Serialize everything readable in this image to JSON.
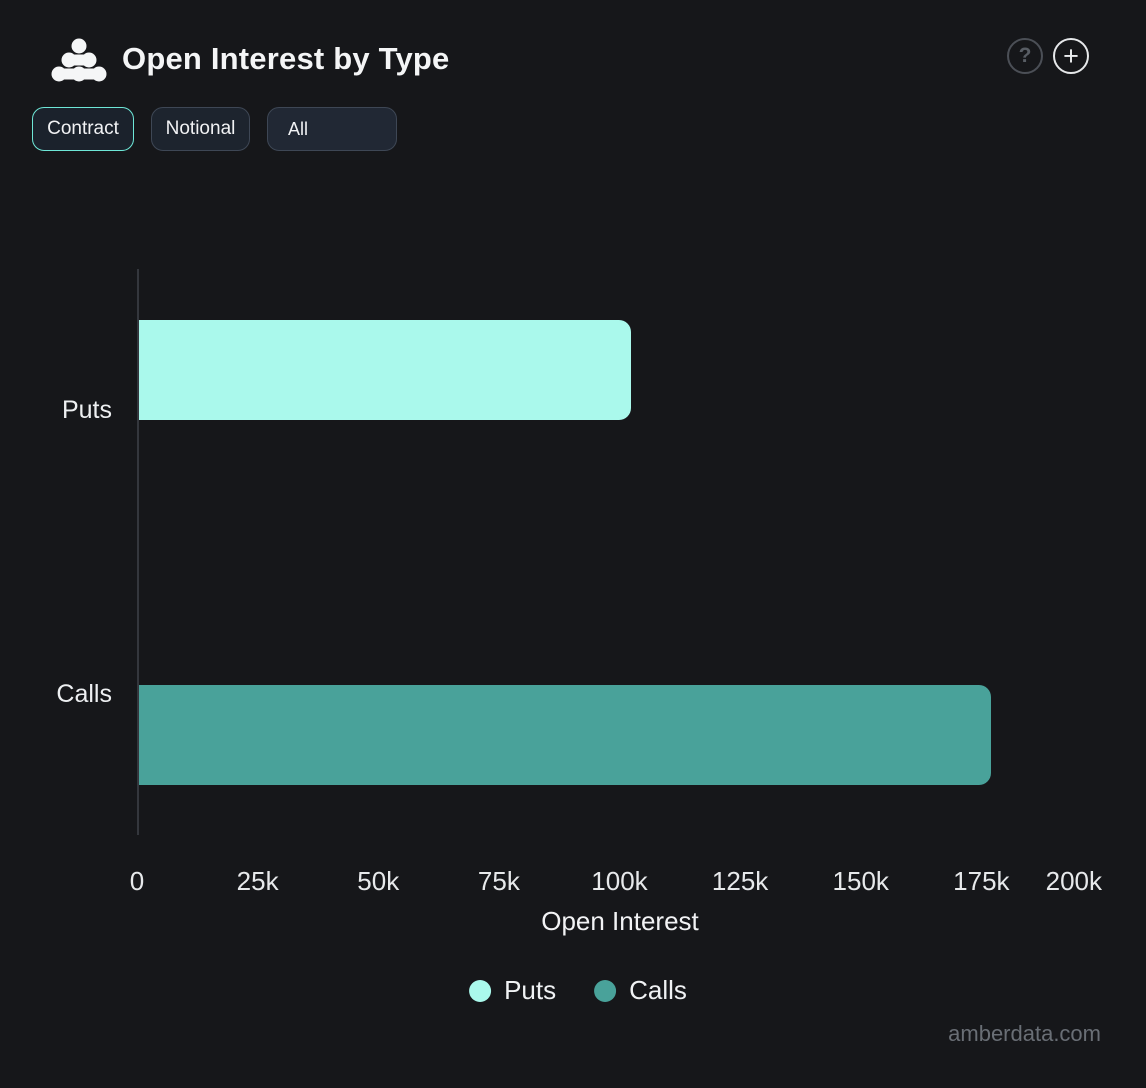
{
  "header": {
    "title": "Open Interest by Type",
    "help_label": "?",
    "add_label": "+"
  },
  "toolbar": {
    "buttons": [
      {
        "label": "Contract",
        "active": true
      },
      {
        "label": "Notional",
        "active": false
      }
    ],
    "filter_dropdown": {
      "value": "All"
    }
  },
  "chart_data": {
    "type": "bar",
    "orientation": "horizontal",
    "title": "Open Interest by Type",
    "categories": [
      "Puts",
      "Calls"
    ],
    "values": [
      102000,
      176500
    ],
    "colors": [
      "#aaf9ec",
      "#49a29a"
    ],
    "xlabel": "Open Interest",
    "ylabel": "",
    "xlim": [
      0,
      200000
    ],
    "grid": false,
    "xticks": {
      "values": [
        0,
        25000,
        50000,
        75000,
        100000,
        125000,
        150000,
        175000,
        200000
      ],
      "labels": [
        "0",
        "25k",
        "50k",
        "75k",
        "100k",
        "125k",
        "150k",
        "175k",
        "200k"
      ]
    },
    "legend": {
      "position": "bottom",
      "entries": [
        {
          "label": "Puts",
          "color": "#aaf9ec"
        },
        {
          "label": "Calls",
          "color": "#49a29a"
        }
      ]
    }
  },
  "colors": {
    "background": "#16171a",
    "accent": "#6ee7d7",
    "puts": "#aaf9ec",
    "calls": "#49a29a"
  },
  "watermark": "amberdata.com"
}
